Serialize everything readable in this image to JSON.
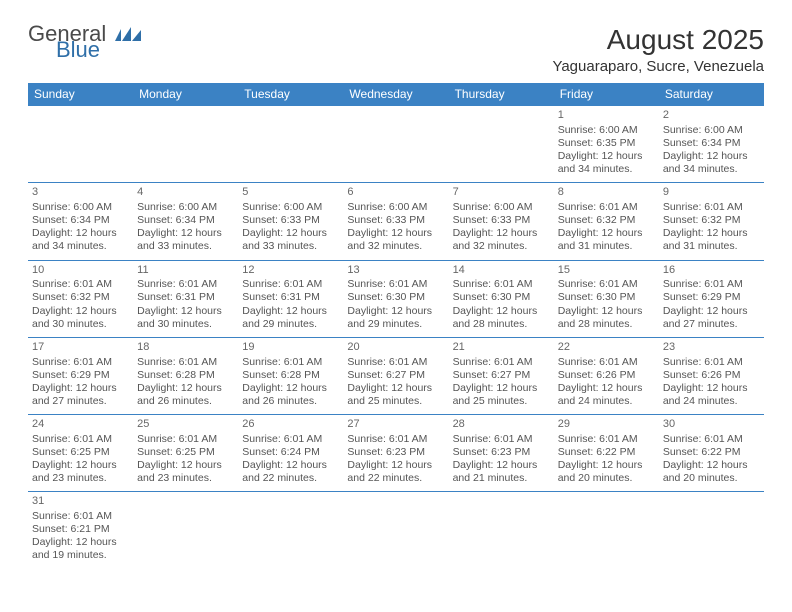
{
  "logo": {
    "word1": "General",
    "word2": "Blue"
  },
  "title": "August 2025",
  "location": "Yaguaraparo, Sucre, Venezuela",
  "colors": {
    "header_bg": "#3b82c4",
    "header_fg": "#ffffff",
    "cell_border": "#3b82c4",
    "text": "#555555",
    "logo_gray": "#4a4a4a",
    "logo_blue": "#2f6fa8"
  },
  "typography": {
    "title_fontsize": 28,
    "location_fontsize": 15,
    "dayheader_fontsize": 12,
    "cell_fontsize": 10.5
  },
  "day_headers": [
    "Sunday",
    "Monday",
    "Tuesday",
    "Wednesday",
    "Thursday",
    "Friday",
    "Saturday"
  ],
  "weeks": [
    [
      null,
      null,
      null,
      null,
      null,
      {
        "n": "1",
        "sr": "Sunrise: 6:00 AM",
        "ss": "Sunset: 6:35 PM",
        "dl1": "Daylight: 12 hours",
        "dl2": "and 34 minutes."
      },
      {
        "n": "2",
        "sr": "Sunrise: 6:00 AM",
        "ss": "Sunset: 6:34 PM",
        "dl1": "Daylight: 12 hours",
        "dl2": "and 34 minutes."
      }
    ],
    [
      {
        "n": "3",
        "sr": "Sunrise: 6:00 AM",
        "ss": "Sunset: 6:34 PM",
        "dl1": "Daylight: 12 hours",
        "dl2": "and 34 minutes."
      },
      {
        "n": "4",
        "sr": "Sunrise: 6:00 AM",
        "ss": "Sunset: 6:34 PM",
        "dl1": "Daylight: 12 hours",
        "dl2": "and 33 minutes."
      },
      {
        "n": "5",
        "sr": "Sunrise: 6:00 AM",
        "ss": "Sunset: 6:33 PM",
        "dl1": "Daylight: 12 hours",
        "dl2": "and 33 minutes."
      },
      {
        "n": "6",
        "sr": "Sunrise: 6:00 AM",
        "ss": "Sunset: 6:33 PM",
        "dl1": "Daylight: 12 hours",
        "dl2": "and 32 minutes."
      },
      {
        "n": "7",
        "sr": "Sunrise: 6:00 AM",
        "ss": "Sunset: 6:33 PM",
        "dl1": "Daylight: 12 hours",
        "dl2": "and 32 minutes."
      },
      {
        "n": "8",
        "sr": "Sunrise: 6:01 AM",
        "ss": "Sunset: 6:32 PM",
        "dl1": "Daylight: 12 hours",
        "dl2": "and 31 minutes."
      },
      {
        "n": "9",
        "sr": "Sunrise: 6:01 AM",
        "ss": "Sunset: 6:32 PM",
        "dl1": "Daylight: 12 hours",
        "dl2": "and 31 minutes."
      }
    ],
    [
      {
        "n": "10",
        "sr": "Sunrise: 6:01 AM",
        "ss": "Sunset: 6:32 PM",
        "dl1": "Daylight: 12 hours",
        "dl2": "and 30 minutes."
      },
      {
        "n": "11",
        "sr": "Sunrise: 6:01 AM",
        "ss": "Sunset: 6:31 PM",
        "dl1": "Daylight: 12 hours",
        "dl2": "and 30 minutes."
      },
      {
        "n": "12",
        "sr": "Sunrise: 6:01 AM",
        "ss": "Sunset: 6:31 PM",
        "dl1": "Daylight: 12 hours",
        "dl2": "and 29 minutes."
      },
      {
        "n": "13",
        "sr": "Sunrise: 6:01 AM",
        "ss": "Sunset: 6:30 PM",
        "dl1": "Daylight: 12 hours",
        "dl2": "and 29 minutes."
      },
      {
        "n": "14",
        "sr": "Sunrise: 6:01 AM",
        "ss": "Sunset: 6:30 PM",
        "dl1": "Daylight: 12 hours",
        "dl2": "and 28 minutes."
      },
      {
        "n": "15",
        "sr": "Sunrise: 6:01 AM",
        "ss": "Sunset: 6:30 PM",
        "dl1": "Daylight: 12 hours",
        "dl2": "and 28 minutes."
      },
      {
        "n": "16",
        "sr": "Sunrise: 6:01 AM",
        "ss": "Sunset: 6:29 PM",
        "dl1": "Daylight: 12 hours",
        "dl2": "and 27 minutes."
      }
    ],
    [
      {
        "n": "17",
        "sr": "Sunrise: 6:01 AM",
        "ss": "Sunset: 6:29 PM",
        "dl1": "Daylight: 12 hours",
        "dl2": "and 27 minutes."
      },
      {
        "n": "18",
        "sr": "Sunrise: 6:01 AM",
        "ss": "Sunset: 6:28 PM",
        "dl1": "Daylight: 12 hours",
        "dl2": "and 26 minutes."
      },
      {
        "n": "19",
        "sr": "Sunrise: 6:01 AM",
        "ss": "Sunset: 6:28 PM",
        "dl1": "Daylight: 12 hours",
        "dl2": "and 26 minutes."
      },
      {
        "n": "20",
        "sr": "Sunrise: 6:01 AM",
        "ss": "Sunset: 6:27 PM",
        "dl1": "Daylight: 12 hours",
        "dl2": "and 25 minutes."
      },
      {
        "n": "21",
        "sr": "Sunrise: 6:01 AM",
        "ss": "Sunset: 6:27 PM",
        "dl1": "Daylight: 12 hours",
        "dl2": "and 25 minutes."
      },
      {
        "n": "22",
        "sr": "Sunrise: 6:01 AM",
        "ss": "Sunset: 6:26 PM",
        "dl1": "Daylight: 12 hours",
        "dl2": "and 24 minutes."
      },
      {
        "n": "23",
        "sr": "Sunrise: 6:01 AM",
        "ss": "Sunset: 6:26 PM",
        "dl1": "Daylight: 12 hours",
        "dl2": "and 24 minutes."
      }
    ],
    [
      {
        "n": "24",
        "sr": "Sunrise: 6:01 AM",
        "ss": "Sunset: 6:25 PM",
        "dl1": "Daylight: 12 hours",
        "dl2": "and 23 minutes."
      },
      {
        "n": "25",
        "sr": "Sunrise: 6:01 AM",
        "ss": "Sunset: 6:25 PM",
        "dl1": "Daylight: 12 hours",
        "dl2": "and 23 minutes."
      },
      {
        "n": "26",
        "sr": "Sunrise: 6:01 AM",
        "ss": "Sunset: 6:24 PM",
        "dl1": "Daylight: 12 hours",
        "dl2": "and 22 minutes."
      },
      {
        "n": "27",
        "sr": "Sunrise: 6:01 AM",
        "ss": "Sunset: 6:23 PM",
        "dl1": "Daylight: 12 hours",
        "dl2": "and 22 minutes."
      },
      {
        "n": "28",
        "sr": "Sunrise: 6:01 AM",
        "ss": "Sunset: 6:23 PM",
        "dl1": "Daylight: 12 hours",
        "dl2": "and 21 minutes."
      },
      {
        "n": "29",
        "sr": "Sunrise: 6:01 AM",
        "ss": "Sunset: 6:22 PM",
        "dl1": "Daylight: 12 hours",
        "dl2": "and 20 minutes."
      },
      {
        "n": "30",
        "sr": "Sunrise: 6:01 AM",
        "ss": "Sunset: 6:22 PM",
        "dl1": "Daylight: 12 hours",
        "dl2": "and 20 minutes."
      }
    ],
    [
      {
        "n": "31",
        "sr": "Sunrise: 6:01 AM",
        "ss": "Sunset: 6:21 PM",
        "dl1": "Daylight: 12 hours",
        "dl2": "and 19 minutes."
      },
      null,
      null,
      null,
      null,
      null,
      null
    ]
  ]
}
